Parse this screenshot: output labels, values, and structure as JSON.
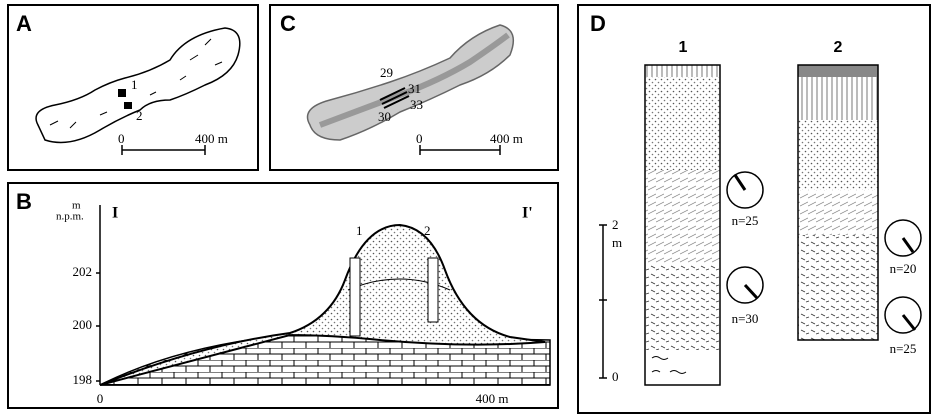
{
  "panel_a": {
    "label": "A",
    "sites": [
      "1",
      "2"
    ],
    "scale": [
      "0",
      "400 m"
    ]
  },
  "panel_c": {
    "label": "C",
    "sites": [
      "29",
      "31",
      "33",
      "30"
    ],
    "scale": [
      "0",
      "400 m"
    ]
  },
  "panel_b": {
    "label": "B",
    "y_unit": [
      "m",
      "n.p.m."
    ],
    "section_ends": [
      "I",
      "I'"
    ],
    "y_ticks": [
      "202",
      "200",
      "198"
    ],
    "profiles": [
      "1",
      "2"
    ],
    "x_ticks": [
      "0",
      "400 m"
    ]
  },
  "panel_d": {
    "label": "D",
    "profiles": [
      "1",
      "2"
    ],
    "scale": [
      "2",
      "m",
      "0"
    ],
    "rose_diagrams": [
      "n=25",
      "n=30",
      "n=20",
      "n=25"
    ]
  }
}
